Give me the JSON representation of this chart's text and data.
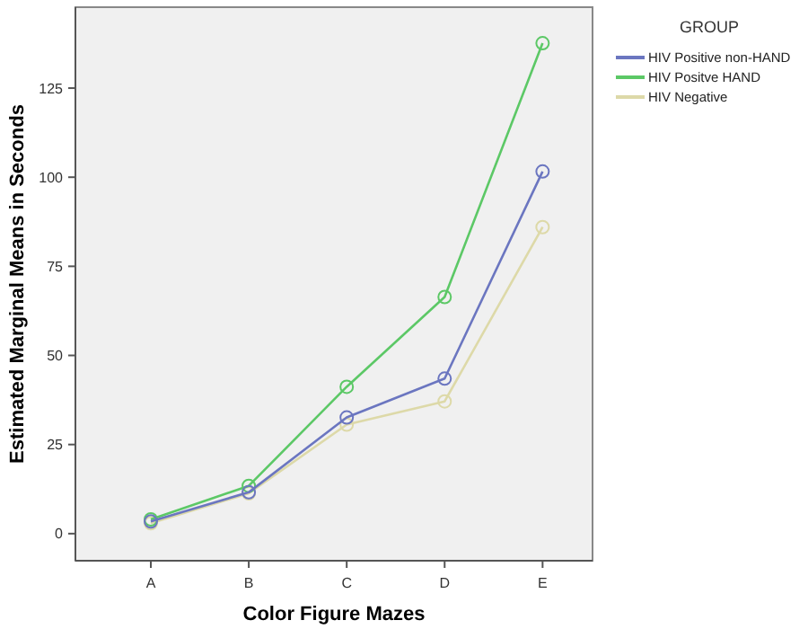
{
  "chart_data": {
    "type": "line",
    "xlabel": "Color Figure Mazes",
    "ylabel": "Estimated Marginal Means in Seconds",
    "legend_title": "GROUP",
    "categories": [
      "A",
      "B",
      "C",
      "D",
      "E"
    ],
    "series": [
      {
        "name": "HIV Positive non-HAND",
        "color": "#6b76c0",
        "values": [
          3.4,
          11.6,
          32.6,
          43.5,
          101.6
        ]
      },
      {
        "name": "HIV Positve HAND",
        "color": "#5cc866",
        "values": [
          4.0,
          13.4,
          41.2,
          66.4,
          137.6
        ]
      },
      {
        "name": "HIV Negative",
        "color": "#ddd9a8",
        "values": [
          2.9,
          11.3,
          30.6,
          37.1,
          86.0
        ]
      }
    ],
    "ylim": [
      -7.6,
      147.7
    ],
    "yticks": [
      0,
      25,
      50,
      75,
      100,
      125
    ],
    "grid": false,
    "legend": "top right",
    "marker": "circle",
    "line_style": "solid"
  }
}
